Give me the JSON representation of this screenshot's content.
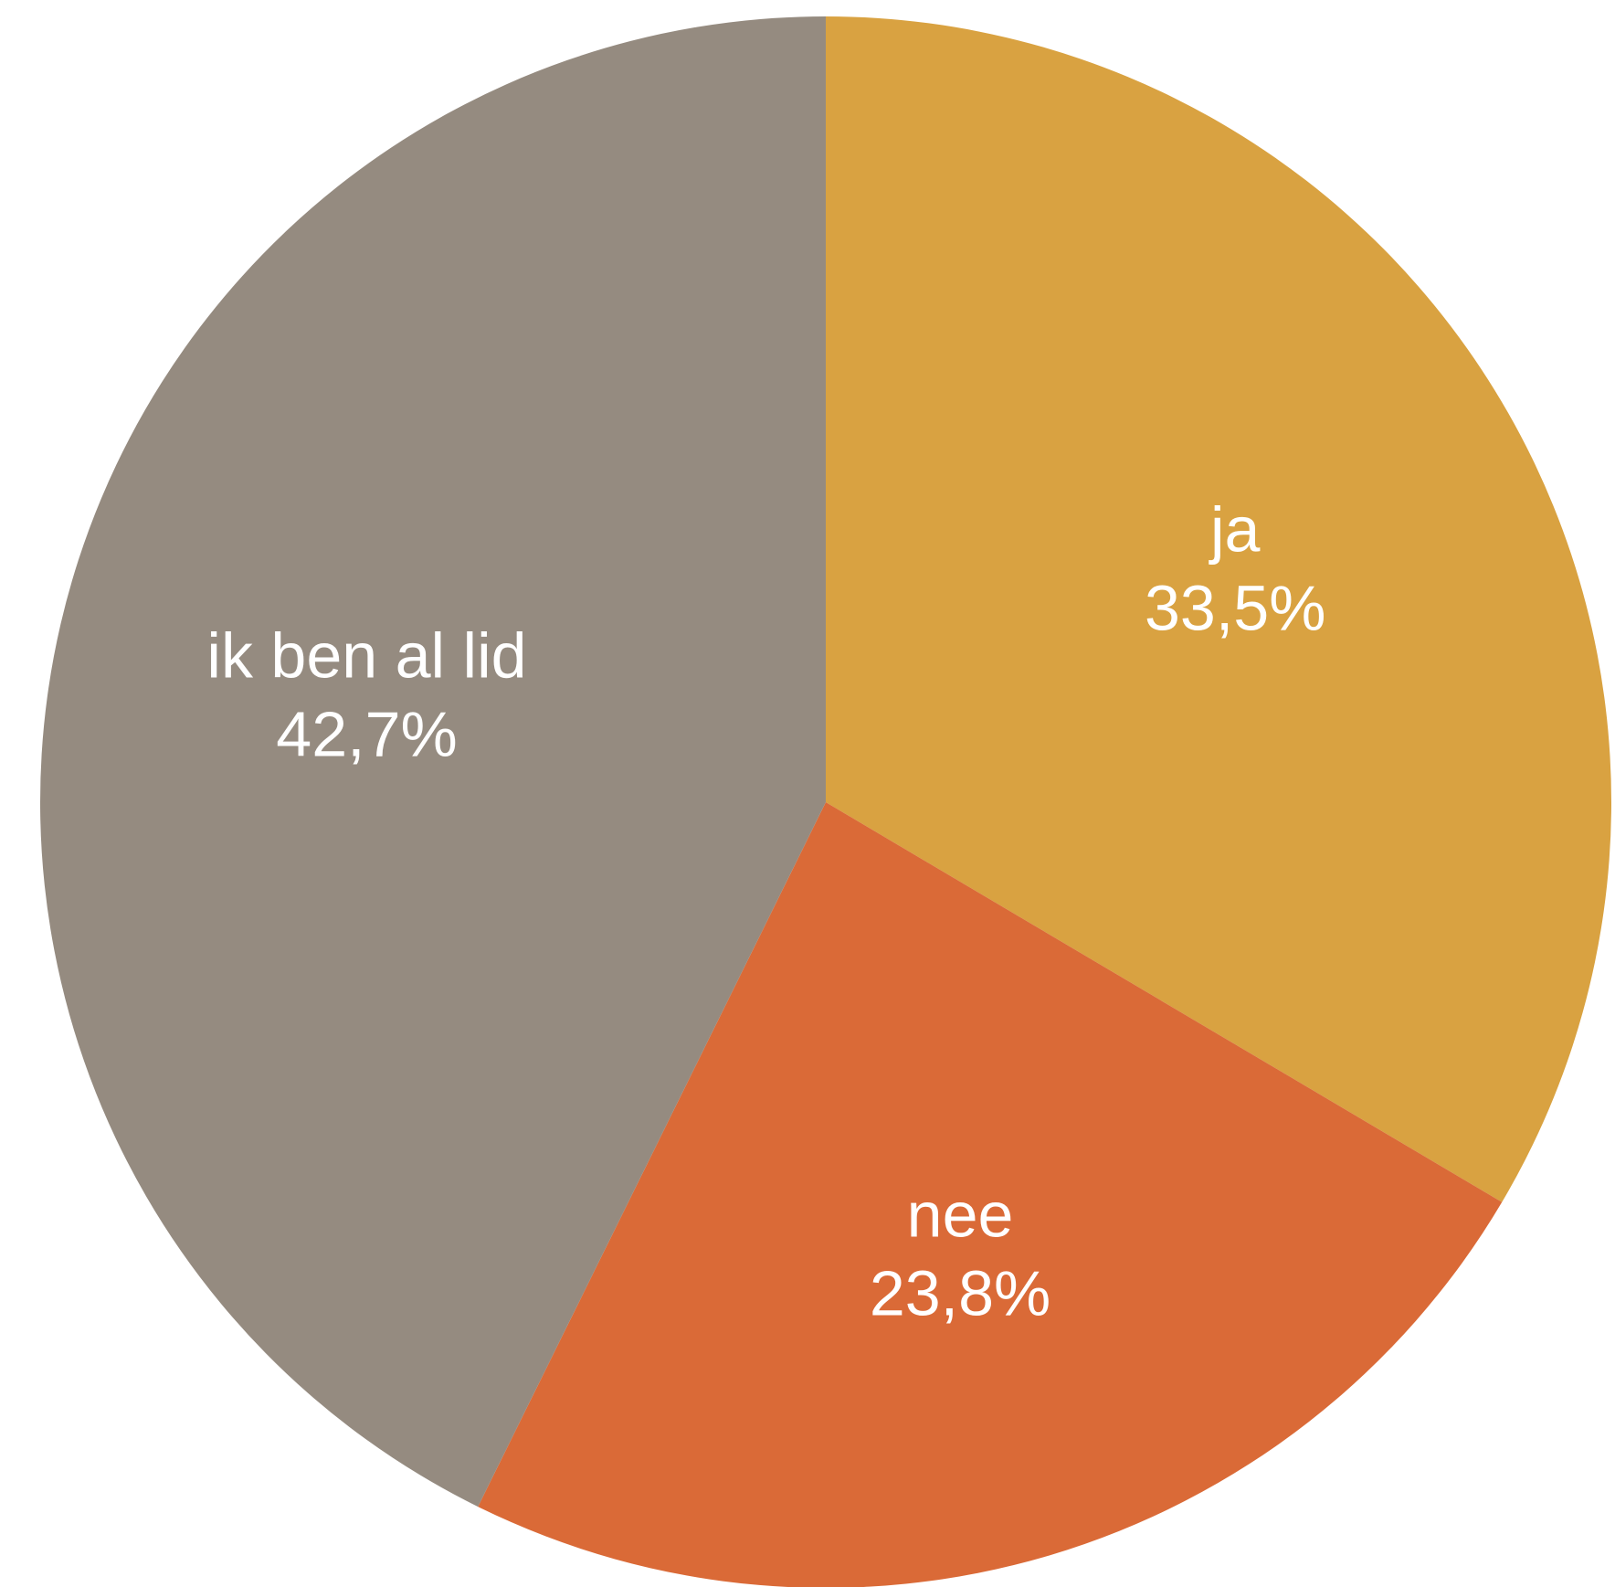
{
  "chart_data": {
    "type": "pie",
    "title": "",
    "start_angle_deg": 0,
    "direction": "clockwise",
    "slices": [
      {
        "label": "ja",
        "value": 33.5,
        "value_label": "33,5%",
        "color": "#D9A241"
      },
      {
        "label": "nee",
        "value": 23.8,
        "value_label": "23,8%",
        "color": "#DA6A37"
      },
      {
        "label": "ik ben al lid",
        "value": 42.7,
        "value_label": "42,7%",
        "color": "#958B80"
      }
    ]
  }
}
